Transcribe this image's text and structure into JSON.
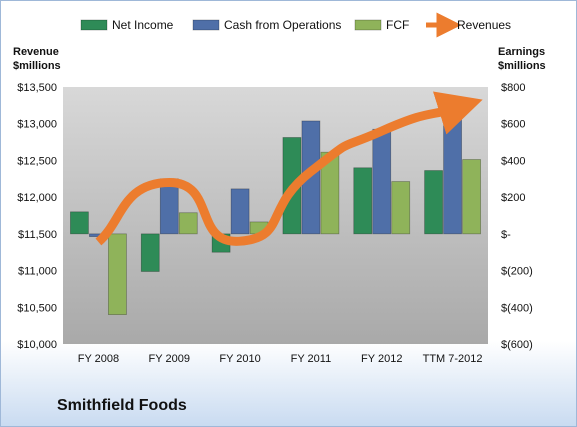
{
  "company_name": "Smithfield Foods",
  "colors": {
    "net_income": "#2e8b57",
    "cash_from_operations": "#4f6fa8",
    "fcf": "#8fb35a",
    "revenues": "#ec7c2e",
    "plot_bg_top": "#d8d8d8",
    "plot_bg_bottom": "#a9a9a9"
  },
  "chart_data": {
    "type": "bar",
    "categories": [
      "FY 2008",
      "FY 2009",
      "FY 2010",
      "FY 2011",
      "FY 2012",
      "TTM 7-2012"
    ],
    "series": [
      {
        "name": "Net Income",
        "type": "bar",
        "axis": "right",
        "values": [
          120,
          -205,
          -100,
          525,
          360,
          345
        ]
      },
      {
        "name": "Cash from Operations",
        "type": "bar",
        "axis": "right",
        "values": [
          -15,
          300,
          245,
          615,
          570,
          695
        ]
      },
      {
        "name": "FCF",
        "type": "bar",
        "axis": "right",
        "values": [
          -440,
          115,
          65,
          445,
          285,
          405
        ]
      },
      {
        "name": "Revenues",
        "type": "line",
        "axis": "left",
        "smooth": true,
        "values": [
          11390,
          12200,
          11400,
          12350,
          12900,
          13200
        ]
      }
    ],
    "left_axis": {
      "label_line1": "Revenue",
      "label_line2": "$millions",
      "ylim": [
        10000,
        13500
      ],
      "ticks": [
        13500,
        13000,
        12500,
        12000,
        11500,
        11000,
        10500,
        10000
      ],
      "tick_labels": [
        "$13,500",
        "$13,000",
        "$12,500",
        "$12,000",
        "$11,500",
        "$11,000",
        "$10,500",
        "$10,000"
      ]
    },
    "right_axis": {
      "label_line1": "Earnings",
      "label_line2": "$millions",
      "ylim": [
        -600,
        800
      ],
      "ticks": [
        800,
        600,
        400,
        200,
        0,
        -200,
        -400,
        -600
      ],
      "tick_labels": [
        "$800",
        "$600",
        "$400",
        "$200",
        "$-",
        "$(200)",
        "$(400)",
        "$(600)"
      ]
    },
    "legend": {
      "position": "top",
      "entries": [
        "Net Income",
        "Cash from Operations",
        "FCF",
        "Revenues"
      ]
    },
    "grid": false
  }
}
